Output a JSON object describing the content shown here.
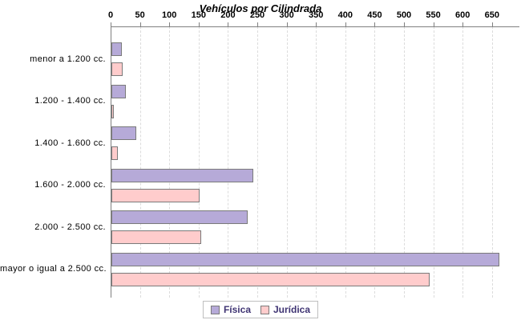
{
  "chart_data": {
    "type": "bar",
    "orientation": "horizontal",
    "title": "Vehículos por Cilindrada",
    "categories": [
      "menor a 1.200 cc.",
      "1.200 - 1.400 cc.",
      "1.400 - 1.600 cc.",
      "1.600 - 2.000 cc.",
      "2.000 - 2.500 cc.",
      "mayor o igual a 2.500 cc."
    ],
    "series": [
      {
        "name": "Física",
        "color": "#b6aad8",
        "values": [
          15,
          22,
          40,
          239,
          230,
          658
        ]
      },
      {
        "name": "Jurídica",
        "color": "#ffcccc",
        "values": [
          16,
          2,
          8,
          147,
          150,
          540
        ]
      }
    ],
    "x_ticks": [
      0,
      50,
      100,
      150,
      200,
      250,
      300,
      350,
      400,
      450,
      500,
      550,
      600,
      650
    ],
    "xlim": [
      0,
      697
    ],
    "grid": "vertical-dashed",
    "legend_position": "bottom",
    "colors": {
      "axis": "#808080",
      "gridline": "#dcdcdc",
      "bar_border": "#7a7a7a",
      "legend_text": "#3f3473",
      "title_text": "#000000"
    }
  }
}
